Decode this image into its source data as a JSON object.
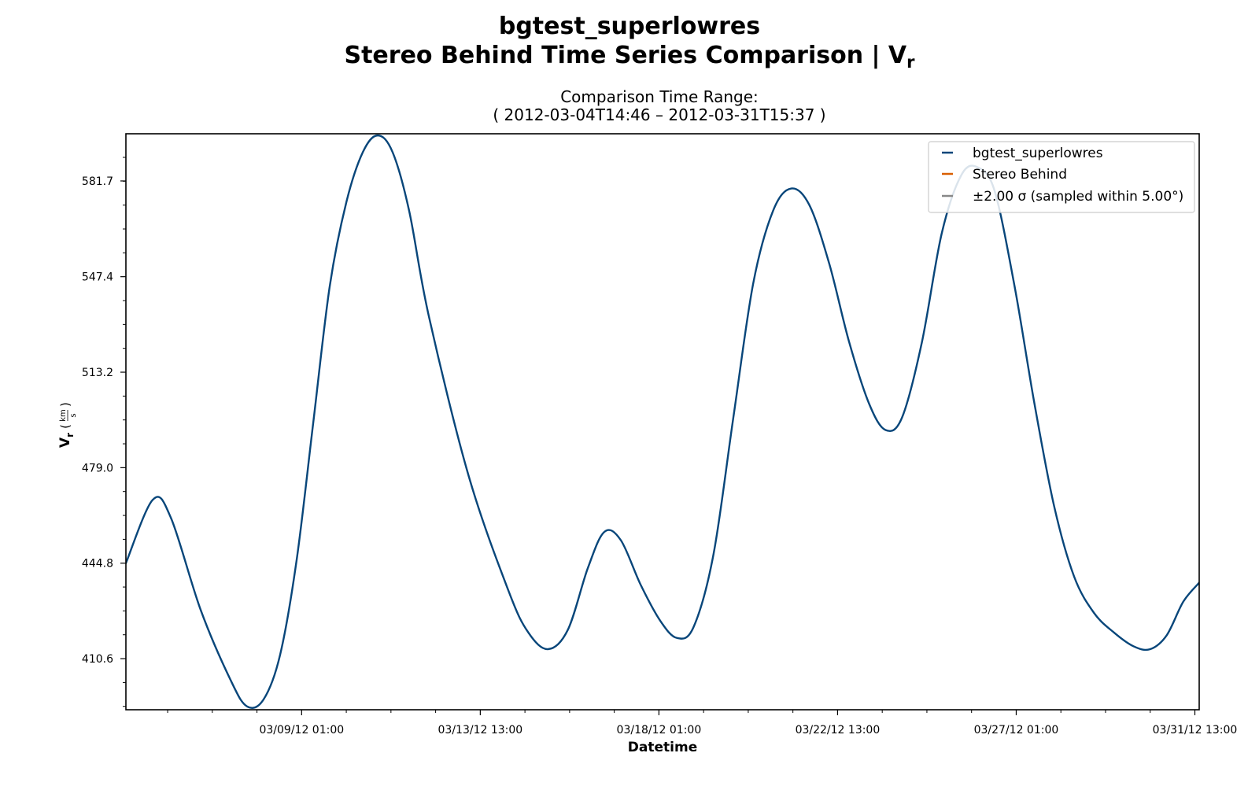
{
  "title_line1": "bgtest_superlowres",
  "title_line2": "Stereo Behind Time Series Comparison | V",
  "title_subscript": "r",
  "subtitle_line1": "Comparison Time Range:",
  "subtitle_line2": "( 2012-03-04T14:46 – 2012-03-31T15:37 )",
  "chart_data": {
    "type": "line",
    "xlabel": "Datetime",
    "ylabel_symbol": "V",
    "ylabel_subscript": "r",
    "ylabel_unit_num": "km",
    "ylabel_unit_den": "s",
    "x_range": [
      "2012-03-04T14:46",
      "2012-03-31T15:37"
    ],
    "ylim": [
      392.3,
      598.6
    ],
    "yticks": [
      410.6,
      444.8,
      479.0,
      513.2,
      547.4,
      581.7
    ],
    "xticks": [
      {
        "t": "2012-03-09T01:00",
        "label": "03/09/12 01:00"
      },
      {
        "t": "2012-03-13T13:00",
        "label": "03/13/12 13:00"
      },
      {
        "t": "2012-03-18T01:00",
        "label": "03/18/12 01:00"
      },
      {
        "t": "2012-03-22T13:00",
        "label": "03/22/12 13:00"
      },
      {
        "t": "2012-03-27T01:00",
        "label": "03/27/12 01:00"
      },
      {
        "t": "2012-03-31T13:00",
        "label": "03/31/12 13:00"
      }
    ],
    "legend_position": "top-right",
    "legend": [
      {
        "label": "bgtest_superlowres",
        "color": "#08467a"
      },
      {
        "label": "Stereo Behind",
        "color": "#d95f02"
      },
      {
        "label": "±2.00 σ (sampled within 5.00°)",
        "color": "#888888"
      }
    ],
    "series": [
      {
        "name": "bgtest_superlowres",
        "color": "#08467a",
        "points": [
          [
            "2012-03-04T14:46",
            444.8
          ],
          [
            "2012-03-05T07:00",
            467.5
          ],
          [
            "2012-03-05T18:00",
            461.0
          ],
          [
            "2012-03-06T12:00",
            428.0
          ],
          [
            "2012-03-07T06:00",
            403.0
          ],
          [
            "2012-03-07T16:00",
            393.5
          ],
          [
            "2012-03-08T02:00",
            396.0
          ],
          [
            "2012-03-08T12:00",
            412.0
          ],
          [
            "2012-03-08T22:00",
            446.0
          ],
          [
            "2012-03-09T08:00",
            495.0
          ],
          [
            "2012-03-09T18:00",
            544.0
          ],
          [
            "2012-03-10T04:00",
            574.0
          ],
          [
            "2012-03-10T14:00",
            592.0
          ],
          [
            "2012-03-10T23:00",
            598.0
          ],
          [
            "2012-03-11T08:00",
            592.0
          ],
          [
            "2012-03-11T18:00",
            571.0
          ],
          [
            "2012-03-12T06:00",
            533.0
          ],
          [
            "2012-03-13T06:00",
            476.0
          ],
          [
            "2012-03-14T06:00",
            435.0
          ],
          [
            "2012-03-14T18:00",
            420.0
          ],
          [
            "2012-03-15T06:00",
            414.0
          ],
          [
            "2012-03-15T18:00",
            421.0
          ],
          [
            "2012-03-16T06:00",
            443.0
          ],
          [
            "2012-03-16T16:00",
            456.0
          ],
          [
            "2012-03-17T02:00",
            453.0
          ],
          [
            "2012-03-17T14:00",
            437.0
          ],
          [
            "2012-03-18T02:00",
            424.0
          ],
          [
            "2012-03-18T12:00",
            418.0
          ],
          [
            "2012-03-18T22:00",
            422.0
          ],
          [
            "2012-03-19T10:00",
            448.0
          ],
          [
            "2012-03-19T22:00",
            497.0
          ],
          [
            "2012-03-20T10:00",
            545.0
          ],
          [
            "2012-03-20T22:00",
            571.0
          ],
          [
            "2012-03-21T09:00",
            579.0
          ],
          [
            "2012-03-21T20:00",
            573.0
          ],
          [
            "2012-03-22T08:00",
            552.0
          ],
          [
            "2012-03-22T20:00",
            524.0
          ],
          [
            "2012-03-23T08:00",
            502.0
          ],
          [
            "2012-03-23T18:00",
            492.5
          ],
          [
            "2012-03-24T04:00",
            497.0
          ],
          [
            "2012-03-24T16:00",
            524.0
          ],
          [
            "2012-03-25T04:00",
            563.0
          ],
          [
            "2012-03-25T16:00",
            584.0
          ],
          [
            "2012-03-26T02:00",
            586.5
          ],
          [
            "2012-03-26T12:00",
            578.0
          ],
          [
            "2012-03-27T00:00",
            544.0
          ],
          [
            "2012-03-27T12:00",
            502.0
          ],
          [
            "2012-03-28T00:00",
            465.0
          ],
          [
            "2012-03-28T12:00",
            440.0
          ],
          [
            "2012-03-29T00:00",
            427.0
          ],
          [
            "2012-03-29T12:00",
            420.0
          ],
          [
            "2012-03-30T00:00",
            415.0
          ],
          [
            "2012-03-30T10:00",
            414.0
          ],
          [
            "2012-03-30T20:00",
            419.0
          ],
          [
            "2012-03-31T06:00",
            431.0
          ],
          [
            "2012-03-31T15:37",
            437.8
          ]
        ]
      }
    ]
  }
}
